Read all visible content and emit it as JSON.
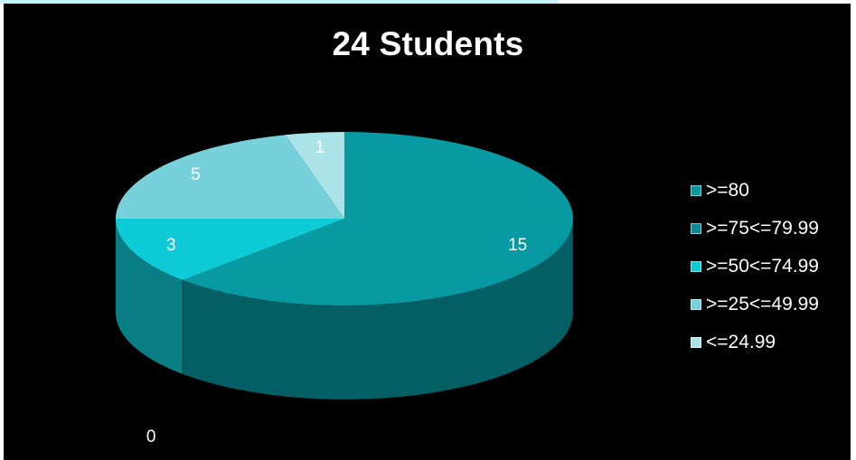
{
  "chart_data": {
    "type": "pie",
    "title": "24 Students",
    "categories": [
      ">=80",
      ">=75<=79.99",
      ">=50<=74.99",
      ">=25<=49.99",
      "<=24.99"
    ],
    "values": [
      15,
      0,
      3,
      5,
      1
    ],
    "colors": [
      "#079aa3",
      "#0b8c95",
      "#0fcbd7",
      "#76d1da",
      "#abe4e8"
    ],
    "legend_position": "right",
    "style": "3d"
  }
}
